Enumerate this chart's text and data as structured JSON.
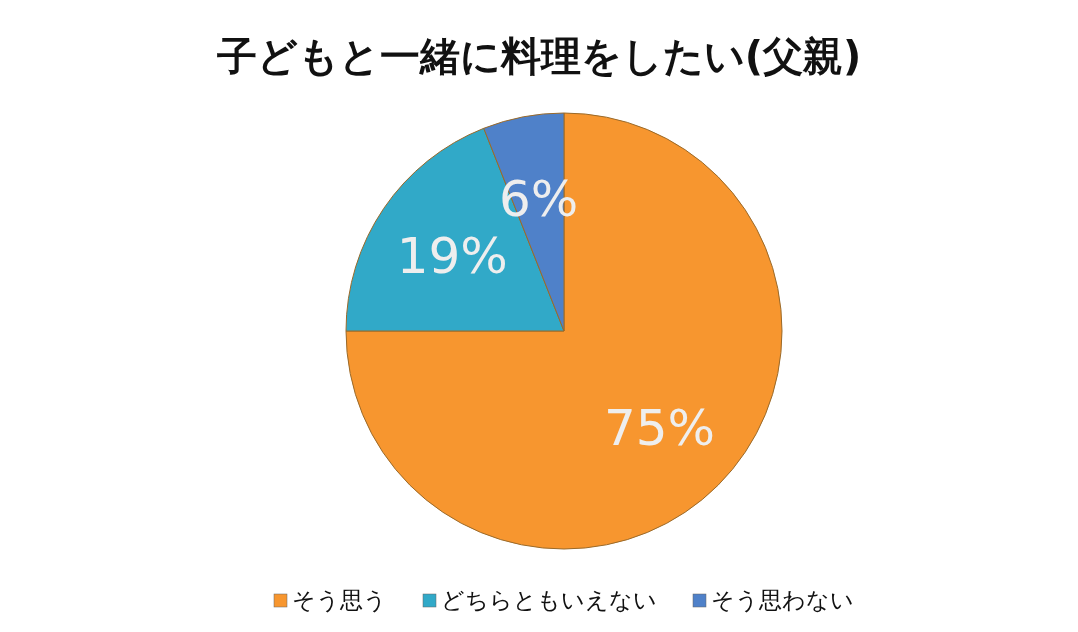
{
  "chart_data": {
    "type": "pie",
    "title": "子どもと一緒に料理をしたい(父親)",
    "categories": [
      "そう思う",
      "どちらともいえない",
      "そう思わない"
    ],
    "values": [
      75,
      19,
      6
    ],
    "colors": [
      "#f7962f",
      "#31a9c8",
      "#4f81c9"
    ],
    "value_labels": [
      "75%",
      "19%",
      "6%"
    ],
    "legend": "bottom"
  }
}
